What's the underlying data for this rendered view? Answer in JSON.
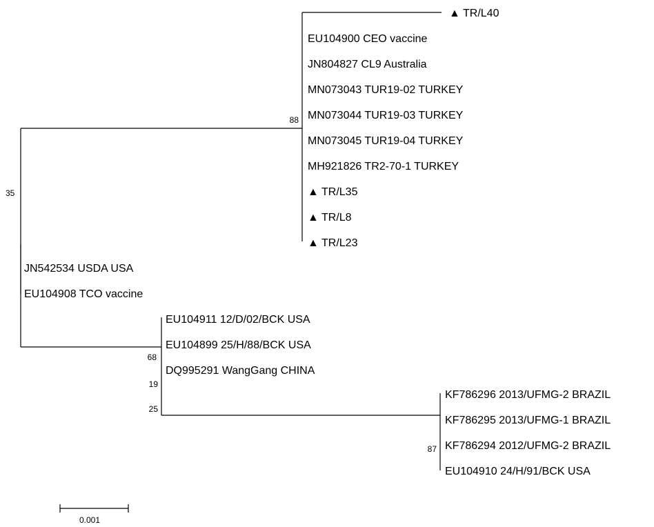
{
  "tree": {
    "marker": "▲",
    "leaves": {
      "tr_l40": "TR/L40",
      "eu104900": "EU104900 CEO vaccine",
      "jn804827": "JN804827 CL9 Australia",
      "mn073043": "MN073043 TUR19-02 TURKEY",
      "mn073044": "MN073044 TUR19-03 TURKEY",
      "mn073045": "MN073045 TUR19-04 TURKEY",
      "mh921826": "MH921826 TR2-70-1 TURKEY",
      "tr_l35": "TR/L35",
      "tr_l8": "TR/L8",
      "tr_l23": "TR/L23",
      "jn542534": "JN542534 USDA USA",
      "eu104908": "EU104908 TCO vaccine",
      "eu104911": "EU104911 12/D/02/BCK USA",
      "eu104899": "EU104899 25/H/88/BCK USA",
      "dq995291": "DQ995291 WangGang CHINA",
      "kf786296": "KF786296 2013/UFMG-2 BRAZIL",
      "kf786295": "KF786295 2013/UFMG-1 BRAZIL",
      "kf786294": "KF786294 2012/UFMG-2 BRAZIL",
      "eu104910": "EU104910 24/H/91/BCK USA"
    },
    "bootstrap": {
      "n88": "88",
      "n35": "35",
      "n68": "68",
      "n19": "19",
      "n25": "25",
      "n87": "87"
    },
    "scale_bar": {
      "label": "0.001"
    }
  }
}
